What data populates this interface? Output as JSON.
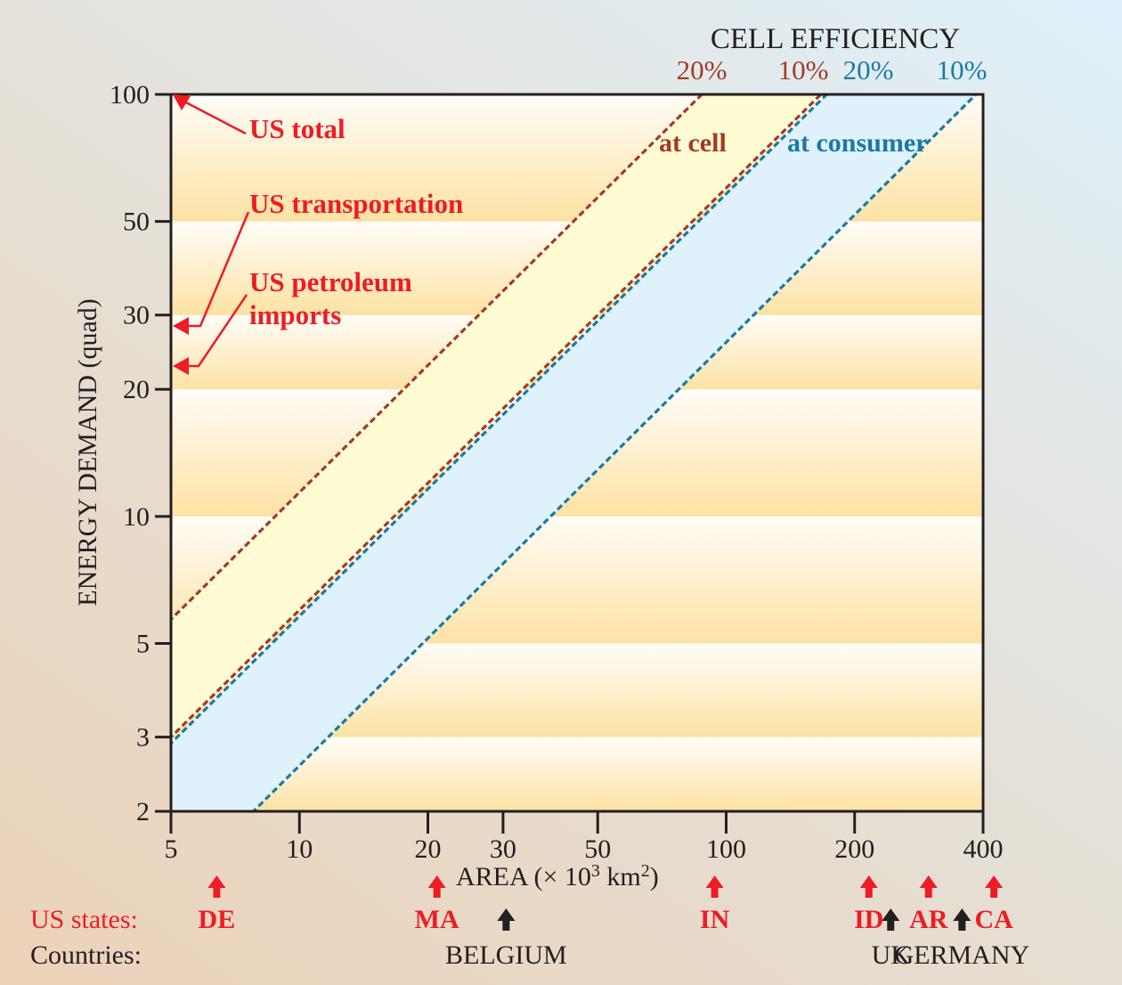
{
  "chart_data": {
    "type": "line",
    "xscale": "log",
    "yscale": "log",
    "xlabel": "AREA (× 10",
    "xlabel_sup1": "3",
    "xlabel_mid": " km",
    "xlabel_sup2": "2",
    "xlabel_end": ")",
    "ylabel": "ENERGY DEMAND (quad)",
    "xlim": [
      5,
      400
    ],
    "ylim": [
      2,
      100
    ],
    "xticks": [
      5,
      10,
      20,
      30,
      50,
      100,
      200,
      400
    ],
    "yticks": [
      2,
      3,
      5,
      10,
      20,
      30,
      50,
      100
    ],
    "header": "CELL EFFICIENCY",
    "efficiency_labels": [
      {
        "text": "20%",
        "group": "at cell",
        "color": "#a33a26"
      },
      {
        "text": "10%",
        "group": "at cell",
        "color": "#a33a26"
      },
      {
        "text": "20%",
        "group": "at consumer",
        "color": "#1a7aa3"
      },
      {
        "text": "10%",
        "group": "at consumer",
        "color": "#1a7aa3"
      }
    ],
    "region_labels": [
      {
        "text": "at cell",
        "color": "#a33a26"
      },
      {
        "text": "at consumer",
        "color": "#1a7aa3"
      }
    ],
    "series": [
      {
        "name": "at cell 20%",
        "color": "#a33a26",
        "style": "dashed",
        "points": [
          [
            5,
            5.7
          ],
          [
            87.7,
            100
          ]
        ]
      },
      {
        "name": "at cell 10%",
        "color": "#a33a26",
        "style": "dashed",
        "points": [
          [
            5,
            3.0
          ],
          [
            166.7,
            100
          ]
        ]
      },
      {
        "name": "at consumer 20%",
        "color": "#1a7aa3",
        "style": "dashed",
        "points": [
          [
            5,
            2.9
          ],
          [
            172,
            100
          ]
        ]
      },
      {
        "name": "at consumer 10%",
        "color": "#1a7aa3",
        "style": "dashed",
        "points": [
          [
            7.8,
            2
          ],
          [
            385,
            100
          ]
        ]
      }
    ],
    "fills": [
      {
        "name": "at cell band",
        "color": "#fffbd3",
        "between": [
          "at cell 20%",
          "at cell 10%"
        ]
      },
      {
        "name": "at consumer band",
        "color": "#dff1fb",
        "between": [
          "at consumer 20%",
          "at consumer 10%"
        ]
      }
    ],
    "annotations": [
      {
        "text": "US total",
        "y": 100,
        "color": "#ee1c25"
      },
      {
        "text": "US transportation",
        "y": 28,
        "color": "#ee1c25"
      },
      {
        "text": "US petroleum",
        "text2": "imports",
        "y": 22,
        "color": "#ee1c25"
      }
    ],
    "markers": {
      "us_states_label": "US states:",
      "countries_label": "Countries:",
      "us_states": [
        {
          "code": "DE",
          "area": 6.4
        },
        {
          "code": "MA",
          "area": 21
        },
        {
          "code": "IN",
          "area": 94
        },
        {
          "code": "ID",
          "area": 216
        },
        {
          "code": "AR",
          "area": 298
        },
        {
          "code": "CA",
          "area": 424
        }
      ],
      "countries": [
        {
          "name": "BELGIUM",
          "area": 30.5
        },
        {
          "name": "UK",
          "area": 243
        },
        {
          "name": "GERMANY",
          "area": 357
        }
      ]
    },
    "grid": false
  }
}
